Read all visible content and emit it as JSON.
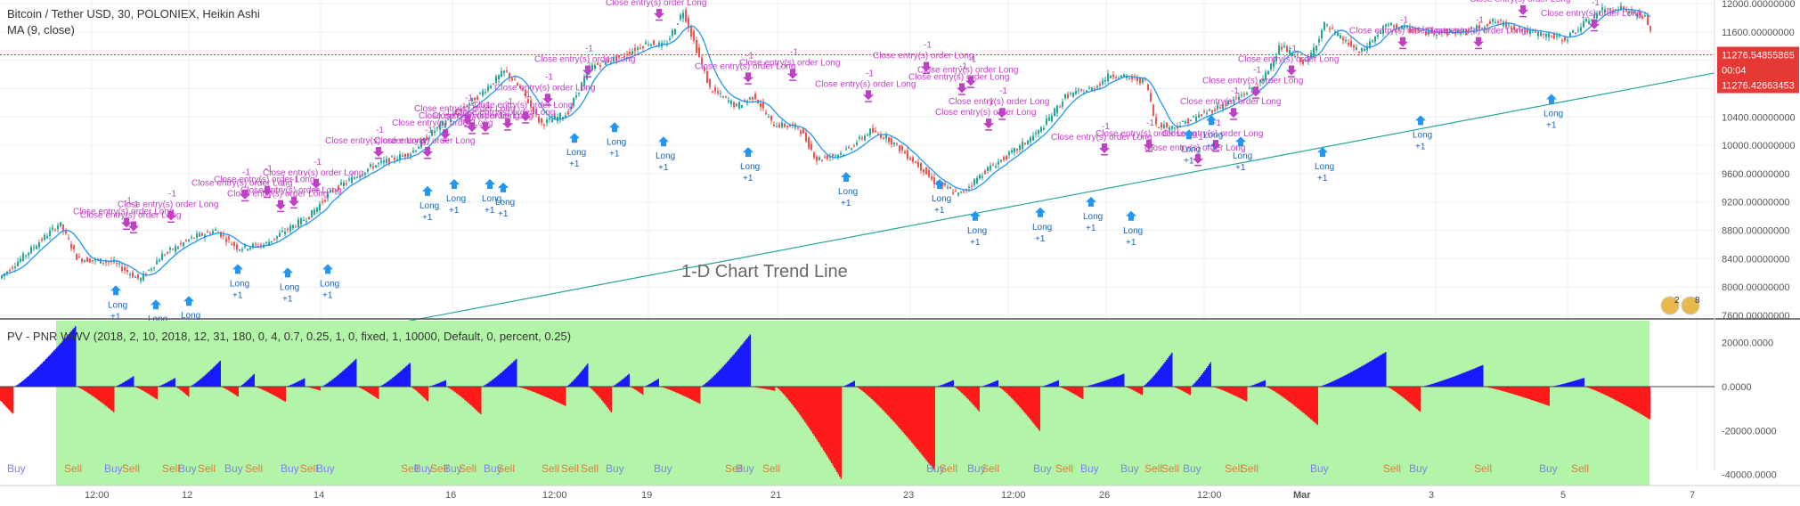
{
  "header": {
    "title": "Bitcoin / Tether USD, 30, POLONIEX, Heikin Ashi",
    "ma_label": "MA (9, close)",
    "indicator_label": "PV - PNR WWV (2018, 2, 10, 2018, 12, 31, 180, 0, 4, 0.7, 0.25, 1, 0, fixed, 1, 10000, Default, 0, percent, 0.25)"
  },
  "colors": {
    "candle_up": "#26a69a",
    "candle_down": "#ef5350",
    "ma": "#2196f3",
    "trendline": "#26a69a",
    "price_line": "#e53935",
    "order_label": "#c13ec6",
    "long_label": "#1565c0",
    "bg_green": "#b3f5a8",
    "bar_pos": "#1a1aff",
    "bar_neg": "#ff1a1a"
  },
  "annotation": "1-D Chart Trend Line",
  "price_badges": {
    "last": "11276.54855865",
    "countdown": "00:04",
    "ma": "11276.42663453"
  },
  "badge_counts": [
    "2",
    "8"
  ],
  "order_text": "Close entry(s) order Long",
  "minus_one": "-1",
  "long_text": "Long",
  "plus_one": "+1",
  "buy_text": "Buy",
  "sell_text": "Sell",
  "chart_data": [
    {
      "type": "candlestick",
      "style": "Heikin Ashi",
      "y_ticks": [
        "12000.00000000",
        "11600.00000000",
        "11200.00000000",
        "10800.00000000",
        "10400.00000000",
        "10000.00000000",
        "9600.00000000",
        "9200.00000000",
        "8800.00000000",
        "8400.00000000",
        "8000.00000000",
        "7600.00000000"
      ],
      "x_ticks": [
        "12:00",
        "12",
        "14",
        "16",
        "12:00",
        "19",
        "21",
        "23",
        "12:00",
        "26",
        "12:00",
        "Mar",
        "3",
        "5",
        "7"
      ],
      "ylim": [
        7550,
        12050
      ],
      "price_path_x": [
        0,
        70,
        90,
        130,
        160,
        185,
        220,
        245,
        270,
        300,
        330,
        350,
        375,
        420,
        465,
        490,
        500,
        540,
        570,
        590,
        610,
        640,
        665,
        700,
        730,
        750,
        770,
        800,
        830,
        850,
        870,
        900,
        920,
        950,
        980,
        1000,
        1040,
        1050,
        1080,
        1110,
        1140,
        1170,
        1200,
        1230,
        1250,
        1290,
        1300,
        1320,
        1390,
        1420,
        1440,
        1470,
        1490,
        1530,
        1560,
        1600,
        1650,
        1680,
        1720,
        1760,
        1800,
        1820,
        1850,
        1870
      ],
      "price_path": [
        8100,
        8900,
        8400,
        8350,
        8100,
        8450,
        8700,
        8800,
        8550,
        8600,
        8850,
        9000,
        9350,
        9700,
        9900,
        10200,
        10300,
        10700,
        11050,
        10750,
        10300,
        10450,
        11100,
        11250,
        11450,
        11400,
        11900,
        10800,
        10550,
        10700,
        10300,
        10250,
        9800,
        9900,
        10200,
        10100,
        9650,
        9500,
        9300,
        9650,
        9900,
        10200,
        10700,
        10800,
        11000,
        10900,
        10300,
        10250,
        10650,
        10900,
        11400,
        11150,
        11700,
        11300,
        11700,
        11600,
        11600,
        11750,
        11600,
        11500,
        11900,
        11950,
        11800,
        11250
      ],
      "ma": {
        "period": 9,
        "source": "close"
      },
      "trendline": {
        "from": {
          "x": 400,
          "price": 7380
        },
        "to": {
          "x": 1925,
          "price": 11020
        },
        "label": "1-D Chart Trend Line"
      },
      "price_line": 11276.54855865,
      "close_long_markers_x": [
        142,
        150,
        192,
        275,
        300,
        315,
        330,
        355,
        425,
        480,
        500,
        525,
        530,
        545,
        570,
        590,
        615,
        660,
        740,
        840,
        890,
        975,
        1040,
        1080,
        1090,
        1110,
        1125,
        1240,
        1290,
        1345,
        1365,
        1385,
        1410,
        1450,
        1575,
        1660,
        1710,
        1790
      ],
      "close_long_markers_price": [
        8700,
        8650,
        8800,
        9100,
        9150,
        8950,
        9000,
        9250,
        9700,
        9700,
        9950,
        10150,
        10050,
        10050,
        10100,
        10200,
        10450,
        10850,
        11650,
        10750,
        10800,
        10500,
        10900,
        10600,
        10700,
        10100,
        10250,
        9750,
        9800,
        9600,
        9800,
        10250,
        10550,
        10850,
        11250,
        11250,
        11700,
        11500
      ],
      "long_markers_x": [
        130,
        175,
        212,
        267,
        323,
        368,
        480,
        510,
        550,
        565,
        645,
        690,
        745,
        840,
        950,
        1055,
        1095,
        1168,
        1225,
        1270,
        1335,
        1360,
        1393,
        1485,
        1595,
        1742
      ],
      "long_markers_price": [
        8200,
        8000,
        8050,
        8500,
        8450,
        8500,
        9600,
        9700,
        9700,
        9650,
        10350,
        10500,
        10300,
        10150,
        9800,
        9700,
        9250,
        9300,
        9450,
        9250,
        10400,
        10600,
        10300,
        10150,
        10600,
        10900
      ]
    },
    {
      "type": "bar",
      "title": "PV - PNR WWV",
      "y_ticks": [
        "20000.0000",
        "0.0000",
        "-20000.0000",
        "-40000.0000"
      ],
      "ylim": [
        -45000,
        30000
      ],
      "green_from_x": 63,
      "green_to_x": 1852,
      "segments": [
        {
          "x0": 0,
          "x1": 15,
          "shape": "tail",
          "min": -13000
        },
        {
          "x0": 15,
          "x1": 85,
          "shape": "up",
          "max": 28000
        },
        {
          "x0": 85,
          "x1": 128,
          "shape": "down",
          "min": -12000
        },
        {
          "x0": 128,
          "x1": 150,
          "shape": "up",
          "max": 5000
        },
        {
          "x0": 150,
          "x1": 176,
          "shape": "down",
          "min": -6000
        },
        {
          "x0": 176,
          "x1": 196,
          "shape": "up",
          "max": 4000
        },
        {
          "x0": 196,
          "x1": 212,
          "shape": "down",
          "min": -5000
        },
        {
          "x0": 212,
          "x1": 247,
          "shape": "up",
          "max": 12000
        },
        {
          "x0": 247,
          "x1": 268,
          "shape": "down",
          "min": -5000
        },
        {
          "x0": 268,
          "x1": 285,
          "shape": "up",
          "max": 6000
        },
        {
          "x0": 285,
          "x1": 320,
          "shape": "down",
          "min": -7000
        },
        {
          "x0": 320,
          "x1": 342,
          "shape": "up",
          "max": 4000
        },
        {
          "x0": 342,
          "x1": 360,
          "shape": "down",
          "min": -2000
        },
        {
          "x0": 360,
          "x1": 400,
          "shape": "up",
          "max": 13000
        },
        {
          "x0": 400,
          "x1": 425,
          "shape": "down",
          "min": -6000
        },
        {
          "x0": 425,
          "x1": 460,
          "shape": "up",
          "max": 11000
        },
        {
          "x0": 460,
          "x1": 480,
          "shape": "down",
          "min": -7000
        },
        {
          "x0": 480,
          "x1": 500,
          "shape": "up",
          "max": 3000
        },
        {
          "x0": 500,
          "x1": 540,
          "shape": "down",
          "min": -13000
        },
        {
          "x0": 540,
          "x1": 580,
          "shape": "up",
          "max": 13000
        },
        {
          "x0": 580,
          "x1": 635,
          "shape": "down",
          "min": -9000
        },
        {
          "x0": 635,
          "x1": 660,
          "shape": "up",
          "max": 11000
        },
        {
          "x0": 660,
          "x1": 686,
          "shape": "down",
          "min": -12000
        },
        {
          "x0": 686,
          "x1": 706,
          "shape": "up",
          "max": 6000
        },
        {
          "x0": 706,
          "x1": 722,
          "shape": "down",
          "min": -4000
        },
        {
          "x0": 722,
          "x1": 740,
          "shape": "up",
          "max": 4000
        },
        {
          "x0": 740,
          "x1": 786,
          "shape": "down",
          "min": -8000
        },
        {
          "x0": 786,
          "x1": 842,
          "shape": "up",
          "max": 24000
        },
        {
          "x0": 842,
          "x1": 870,
          "shape": "down",
          "min": -2000
        },
        {
          "x0": 870,
          "x1": 945,
          "shape": "down",
          "min": -43000
        },
        {
          "x0": 945,
          "x1": 960,
          "shape": "up",
          "max": 3000
        },
        {
          "x0": 960,
          "x1": 1050,
          "shape": "down",
          "min": -39000
        },
        {
          "x0": 1050,
          "x1": 1070,
          "shape": "up",
          "max": 3000
        },
        {
          "x0": 1070,
          "x1": 1100,
          "shape": "down",
          "min": -12000
        },
        {
          "x0": 1100,
          "x1": 1120,
          "shape": "up",
          "max": 3000
        },
        {
          "x0": 1120,
          "x1": 1168,
          "shape": "down",
          "min": -21000
        },
        {
          "x0": 1168,
          "x1": 1188,
          "shape": "up",
          "max": 3000
        },
        {
          "x0": 1188,
          "x1": 1216,
          "shape": "down",
          "min": -6000
        },
        {
          "x0": 1216,
          "x1": 1262,
          "shape": "up",
          "max": 6000
        },
        {
          "x0": 1262,
          "x1": 1282,
          "shape": "down",
          "min": -4000
        },
        {
          "x0": 1282,
          "x1": 1316,
          "shape": "up",
          "max": 16000
        },
        {
          "x0": 1316,
          "x1": 1336,
          "shape": "down",
          "min": -4000
        },
        {
          "x0": 1336,
          "x1": 1360,
          "shape": "up",
          "max": 12000
        },
        {
          "x0": 1360,
          "x1": 1400,
          "shape": "down",
          "min": -7000
        },
        {
          "x0": 1400,
          "x1": 1420,
          "shape": "up",
          "max": 3000
        },
        {
          "x0": 1420,
          "x1": 1480,
          "shape": "down",
          "min": -18000
        },
        {
          "x0": 1480,
          "x1": 1556,
          "shape": "up",
          "max": 16000
        },
        {
          "x0": 1556,
          "x1": 1595,
          "shape": "down",
          "min": -12000
        },
        {
          "x0": 1595,
          "x1": 1665,
          "shape": "up",
          "max": 10000
        },
        {
          "x0": 1665,
          "x1": 1740,
          "shape": "down",
          "min": -9000
        },
        {
          "x0": 1740,
          "x1": 1778,
          "shape": "up",
          "max": 4000
        },
        {
          "x0": 1778,
          "x1": 1852,
          "shape": "down",
          "min": -15000
        }
      ],
      "signals": [
        {
          "x": 18,
          "s": "Buy"
        },
        {
          "x": 82,
          "s": "Sell"
        },
        {
          "x": 127,
          "s": "Buy"
        },
        {
          "x": 147,
          "s": "Sell"
        },
        {
          "x": 192,
          "s": "Sell"
        },
        {
          "x": 210,
          "s": "Buy"
        },
        {
          "x": 232,
          "s": "Sell"
        },
        {
          "x": 262,
          "s": "Buy"
        },
        {
          "x": 285,
          "s": "Sell"
        },
        {
          "x": 325,
          "s": "Buy"
        },
        {
          "x": 347,
          "s": "Sell"
        },
        {
          "x": 365,
          "s": "Buy"
        },
        {
          "x": 460,
          "s": "Sell"
        },
        {
          "x": 475,
          "s": "Buy"
        },
        {
          "x": 493,
          "s": "Sell"
        },
        {
          "x": 508,
          "s": "Buy"
        },
        {
          "x": 525,
          "s": "Sell"
        },
        {
          "x": 553,
          "s": "Buy"
        },
        {
          "x": 568,
          "s": "Sell"
        },
        {
          "x": 618,
          "s": "Sell"
        },
        {
          "x": 640,
          "s": "Sell"
        },
        {
          "x": 662,
          "s": "Sell"
        },
        {
          "x": 690,
          "s": "Buy"
        },
        {
          "x": 744,
          "s": "Buy"
        },
        {
          "x": 824,
          "s": "Sell"
        },
        {
          "x": 836,
          "s": "Buy"
        },
        {
          "x": 866,
          "s": "Sell"
        },
        {
          "x": 1050,
          "s": "Buy"
        },
        {
          "x": 1065,
          "s": "Sell"
        },
        {
          "x": 1096,
          "s": "Buy"
        },
        {
          "x": 1112,
          "s": "Sell"
        },
        {
          "x": 1170,
          "s": "Buy"
        },
        {
          "x": 1195,
          "s": "Sell"
        },
        {
          "x": 1223,
          "s": "Buy"
        },
        {
          "x": 1268,
          "s": "Buy"
        },
        {
          "x": 1295,
          "s": "Sell"
        },
        {
          "x": 1314,
          "s": "Sell"
        },
        {
          "x": 1338,
          "s": "Buy"
        },
        {
          "x": 1385,
          "s": "Sell"
        },
        {
          "x": 1403,
          "s": "Sell"
        },
        {
          "x": 1481,
          "s": "Buy"
        },
        {
          "x": 1563,
          "s": "Sell"
        },
        {
          "x": 1592,
          "s": "Buy"
        },
        {
          "x": 1665,
          "s": "Sell"
        },
        {
          "x": 1738,
          "s": "Buy"
        },
        {
          "x": 1774,
          "s": "Sell"
        }
      ]
    }
  ]
}
